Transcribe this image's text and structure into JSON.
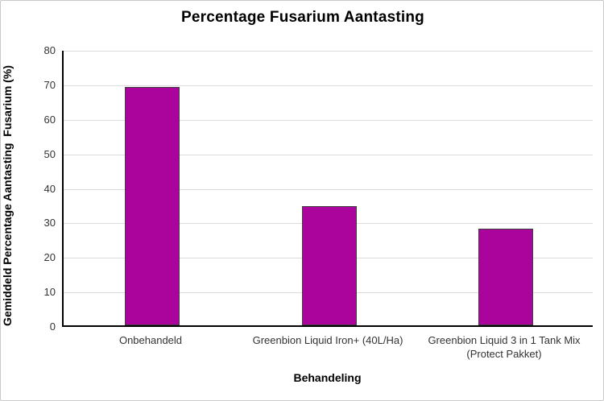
{
  "chart_data": {
    "type": "bar",
    "title": "Percentage Fusarium Aantasting",
    "xlabel": "Behandeling",
    "ylabel": "Gemiddeld Percentage Aantasting  Fusarium (%)",
    "categories": [
      "Onbehandeld",
      "Greenbion Liquid Iron+ (40L/Ha)",
      "Greenbion Liquid 3 in 1 Tank Mix (Protect Pakket)"
    ],
    "values": [
      69,
      34.5,
      28
    ],
    "ylim": [
      0,
      80
    ],
    "ytick_step": 10,
    "ytick_labels": [
      "0",
      "10",
      "20",
      "30",
      "40",
      "50",
      "60",
      "70",
      "80"
    ],
    "grid": true,
    "legend": "none",
    "colors": {
      "bar_fill": "#aa049c",
      "bar_border": "#3f3f3f",
      "gridline": "#dcdcdc",
      "axis_line": "#000000",
      "tick_label": "#333333",
      "title_text": "#000000",
      "figure_border": "#c9c9c9",
      "background": "#ffffff"
    }
  }
}
